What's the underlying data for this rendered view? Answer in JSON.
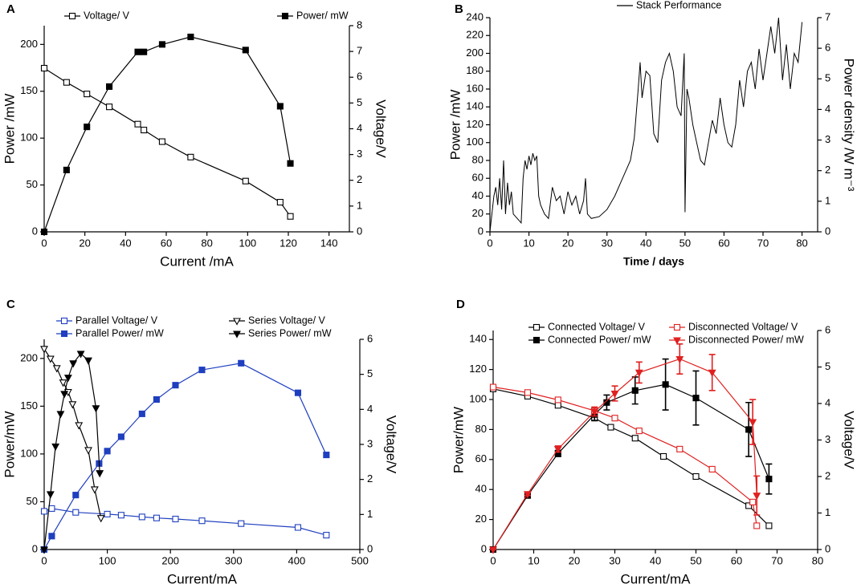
{
  "chart_data": [
    {
      "type": "line",
      "label": "A",
      "xlabel": "Current /mA",
      "ylabel": "Power /mW",
      "y2label": "Voltage/V",
      "xlim": [
        0,
        150
      ],
      "xticks": [
        0,
        20,
        40,
        60,
        80,
        100,
        120,
        140
      ],
      "ylim": [
        0,
        220
      ],
      "yticks": [
        0,
        50,
        100,
        150,
        200
      ],
      "y2lim": [
        0,
        8
      ],
      "y2ticks": [
        0,
        1,
        2,
        3,
        4,
        5,
        6,
        7,
        8
      ],
      "series": [
        {
          "name": "Voltage/ V",
          "color": "#000000",
          "marker": "square-open",
          "axis": "y2",
          "x": [
            0,
            11,
            21,
            32,
            46,
            49,
            58,
            72,
            99,
            116,
            121
          ],
          "values": [
            6.35,
            5.8,
            5.35,
            4.85,
            4.18,
            3.95,
            3.5,
            2.9,
            1.97,
            1.15,
            0.6
          ]
        },
        {
          "name": "Power/ mW",
          "color": "#000000",
          "marker": "square",
          "x": [
            0,
            11,
            21,
            32,
            46,
            49,
            58,
            72,
            99,
            116,
            121
          ],
          "values": [
            0,
            66,
            112,
            155,
            192,
            192,
            200,
            208,
            194,
            134,
            73
          ]
        }
      ]
    },
    {
      "type": "line",
      "label": "B",
      "xlabel": "Time / days",
      "ylabel": "Power /mW",
      "y2label": "Power density /W m⁻³",
      "xlim": [
        0,
        84
      ],
      "xticks": [
        0,
        10,
        20,
        30,
        40,
        50,
        60,
        70,
        80
      ],
      "ylim": [
        0,
        240
      ],
      "yticks": [
        0,
        20,
        40,
        60,
        80,
        100,
        120,
        140,
        160,
        180,
        200,
        220,
        240
      ],
      "y2lim": [
        0,
        7
      ],
      "y2ticks": [
        0,
        1,
        2,
        3,
        4,
        5,
        6,
        7
      ],
      "series": [
        {
          "name": "Stack Performance",
          "color": "#000000",
          "marker": "none",
          "x": [
            0,
            1,
            1.5,
            2,
            2.5,
            3,
            3.5,
            4,
            4.5,
            5,
            5.5,
            6,
            7,
            8,
            8.5,
            9,
            9.5,
            10,
            10.5,
            11,
            11.5,
            12,
            12.5,
            13,
            14,
            15,
            16,
            17,
            18,
            19,
            20,
            21,
            22,
            23,
            24,
            24.5,
            25,
            26,
            28,
            30,
            32,
            34,
            36,
            37,
            38,
            38.5,
            39,
            40,
            41,
            42,
            43,
            44,
            45,
            46,
            47,
            48,
            49,
            49.8,
            50,
            50.5,
            51,
            52,
            53,
            54,
            55,
            56,
            57,
            58,
            59,
            60,
            61,
            62,
            63,
            64,
            65,
            66,
            67,
            68,
            69,
            70,
            71,
            72,
            73,
            74,
            75,
            76,
            77,
            78,
            79,
            80
          ],
          "values": [
            0,
            40,
            50,
            30,
            60,
            25,
            80,
            20,
            55,
            30,
            45,
            20,
            15,
            10,
            60,
            80,
            70,
            85,
            75,
            88,
            80,
            85,
            40,
            30,
            20,
            15,
            50,
            35,
            40,
            20,
            45,
            30,
            40,
            20,
            35,
            60,
            20,
            15,
            17,
            25,
            40,
            60,
            80,
            105,
            160,
            190,
            150,
            180,
            175,
            110,
            100,
            170,
            190,
            200,
            180,
            140,
            130,
            200,
            22,
            160,
            150,
            120,
            100,
            80,
            75,
            100,
            125,
            110,
            150,
            120,
            100,
            95,
            120,
            170,
            140,
            180,
            190,
            160,
            205,
            170,
            200,
            230,
            200,
            240,
            170,
            210,
            160,
            200,
            190,
            235
          ]
        }
      ]
    },
    {
      "type": "line",
      "label": "C",
      "xlabel": "Current/mA",
      "ylabel": "Power/mW",
      "y2label": "Voltage/V",
      "xlim": [
        0,
        500
      ],
      "xticks": [
        0,
        100,
        200,
        300,
        400,
        500
      ],
      "ylim": [
        0,
        220
      ],
      "yticks": [
        0,
        50,
        100,
        150,
        200
      ],
      "y2lim": [
        0,
        6
      ],
      "y2ticks": [
        0,
        1,
        2,
        3,
        4,
        5,
        6
      ],
      "series": [
        {
          "name": "Parallel Voltage/ V",
          "color": "#1f3fbf",
          "marker": "square-open",
          "axis": "y2",
          "x": [
            0,
            12,
            50,
            100,
            122,
            155,
            178,
            208,
            250,
            312,
            402,
            447
          ],
          "values": [
            1.09,
            1.17,
            1.06,
            1.01,
            0.98,
            0.93,
            0.9,
            0.87,
            0.82,
            0.74,
            0.63,
            0.41
          ]
        },
        {
          "name": "Parallel Power/ mW",
          "color": "#1f3fbf",
          "marker": "square",
          "x": [
            0,
            12,
            50,
            87,
            100,
            122,
            155,
            178,
            208,
            250,
            312,
            402,
            447
          ],
          "values": [
            0,
            14,
            57,
            90,
            103,
            118,
            142,
            157,
            172,
            188,
            195,
            164,
            99
          ]
        },
        {
          "name": "Series Voltage/ V",
          "color": "#000000",
          "marker": "triangle-down-open",
          "axis": "y2",
          "x": [
            0,
            10,
            20,
            30,
            38,
            45,
            55,
            70,
            80,
            90
          ],
          "values": [
            5.73,
            5.45,
            5.18,
            4.77,
            4.5,
            4.15,
            3.55,
            2.84,
            1.72,
            0.9
          ]
        },
        {
          "name": "Series Power/ mW",
          "color": "#000000",
          "marker": "triangle-down",
          "x": [
            0,
            10,
            18,
            26,
            32,
            38,
            46,
            58,
            70,
            82,
            88
          ],
          "values": [
            0,
            58,
            108,
            142,
            163,
            180,
            195,
            205,
            198,
            148,
            80
          ]
        }
      ]
    },
    {
      "type": "line",
      "label": "D",
      "xlabel": "Current/mA",
      "ylabel": "Power/mW",
      "y2label": "Voltage/V",
      "xlim": [
        0,
        80
      ],
      "xticks": [
        0,
        10,
        20,
        30,
        40,
        50,
        60,
        70,
        80
      ],
      "ylim": [
        0,
        146
      ],
      "yticks": [
        0,
        20,
        40,
        60,
        80,
        100,
        120,
        140
      ],
      "y2lim": [
        0,
        6
      ],
      "y2ticks": [
        0,
        1,
        2,
        3,
        4,
        5,
        6
      ],
      "series": [
        {
          "name": "Connected Voltage/ V",
          "color": "#000000",
          "marker": "square-open",
          "axis": "y2",
          "x": [
            0,
            8.5,
            16,
            25,
            29,
            35,
            42,
            50,
            63,
            68
          ],
          "values": [
            4.4,
            4.2,
            3.95,
            3.6,
            3.35,
            3.05,
            2.55,
            2.0,
            1.2,
            0.65
          ]
        },
        {
          "name": "Connected Power/ mW",
          "color": "#000000",
          "marker": "square",
          "x": [
            0,
            8.5,
            16,
            25,
            28,
            35,
            42.5,
            50,
            63,
            68
          ],
          "values": [
            0,
            36,
            64,
            90,
            98,
            106,
            110,
            101,
            80,
            47
          ],
          "errors": [
            0,
            1,
            2,
            4,
            5,
            9,
            17,
            18,
            18,
            10
          ]
        },
        {
          "name": "Disconnected Voltage/ V",
          "color": "#e02020",
          "marker": "square-open",
          "axis": "y2",
          "x": [
            0,
            8.5,
            16,
            25,
            30,
            36,
            46,
            54,
            64,
            65
          ],
          "values": [
            4.45,
            4.3,
            4.1,
            3.8,
            3.6,
            3.25,
            2.75,
            2.2,
            1.3,
            0.65
          ]
        },
        {
          "name": "Disconnected Power/ mW",
          "color": "#e02020",
          "marker": "triangle-down",
          "x": [
            0,
            8.5,
            16,
            25,
            30,
            36,
            46,
            54,
            64,
            65
          ],
          "values": [
            0,
            37,
            67,
            92,
            104,
            118,
            127,
            118,
            85,
            36
          ],
          "errors": [
            0,
            1,
            2,
            3,
            5,
            7,
            10,
            12,
            15,
            13
          ]
        }
      ]
    }
  ]
}
